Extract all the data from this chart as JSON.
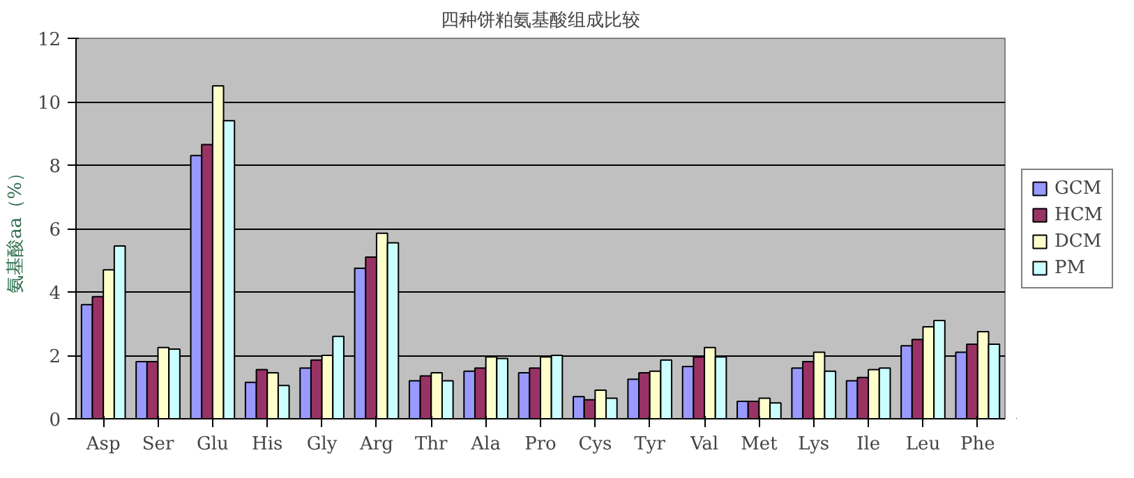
{
  "chart_data": {
    "type": "bar",
    "title": "四种饼粕氨基酸组成比较",
    "ylabel": "氨基酸aa（%）",
    "categories": [
      "Asp",
      "Ser",
      "Glu",
      "His",
      "Gly",
      "Arg",
      "Thr",
      "Ala",
      "Pro",
      "Cys",
      "Tyr",
      "Val",
      "Met",
      "Lys",
      "Ile",
      "Leu",
      "Phe"
    ],
    "series": [
      {
        "name": "GCM",
        "color": "#9999ff",
        "values": [
          3.6,
          1.8,
          8.3,
          1.15,
          1.6,
          4.75,
          1.2,
          1.5,
          1.45,
          0.7,
          1.25,
          1.65,
          0.55,
          1.6,
          1.2,
          2.3,
          2.1
        ]
      },
      {
        "name": "HCM",
        "color": "#993366",
        "values": [
          3.85,
          1.8,
          8.65,
          1.55,
          1.85,
          5.1,
          1.35,
          1.6,
          1.6,
          0.6,
          1.45,
          1.95,
          0.55,
          1.8,
          1.3,
          2.5,
          2.35
        ]
      },
      {
        "name": "DCM",
        "color": "#ffffcc",
        "values": [
          4.7,
          2.25,
          10.5,
          1.45,
          2.0,
          5.85,
          1.45,
          1.95,
          1.95,
          0.9,
          1.5,
          2.25,
          0.65,
          2.1,
          1.55,
          2.9,
          2.75
        ]
      },
      {
        "name": "PM",
        "color": "#ccffff",
        "values": [
          5.45,
          2.2,
          9.4,
          1.05,
          2.6,
          5.55,
          1.2,
          1.9,
          2.0,
          0.65,
          1.85,
          1.95,
          0.5,
          1.5,
          1.6,
          3.1,
          2.35
        ]
      }
    ],
    "ylim": [
      0,
      12
    ],
    "yticks": [
      0,
      2,
      4,
      6,
      8,
      10,
      12
    ],
    "grid": "y",
    "legend": "right"
  }
}
